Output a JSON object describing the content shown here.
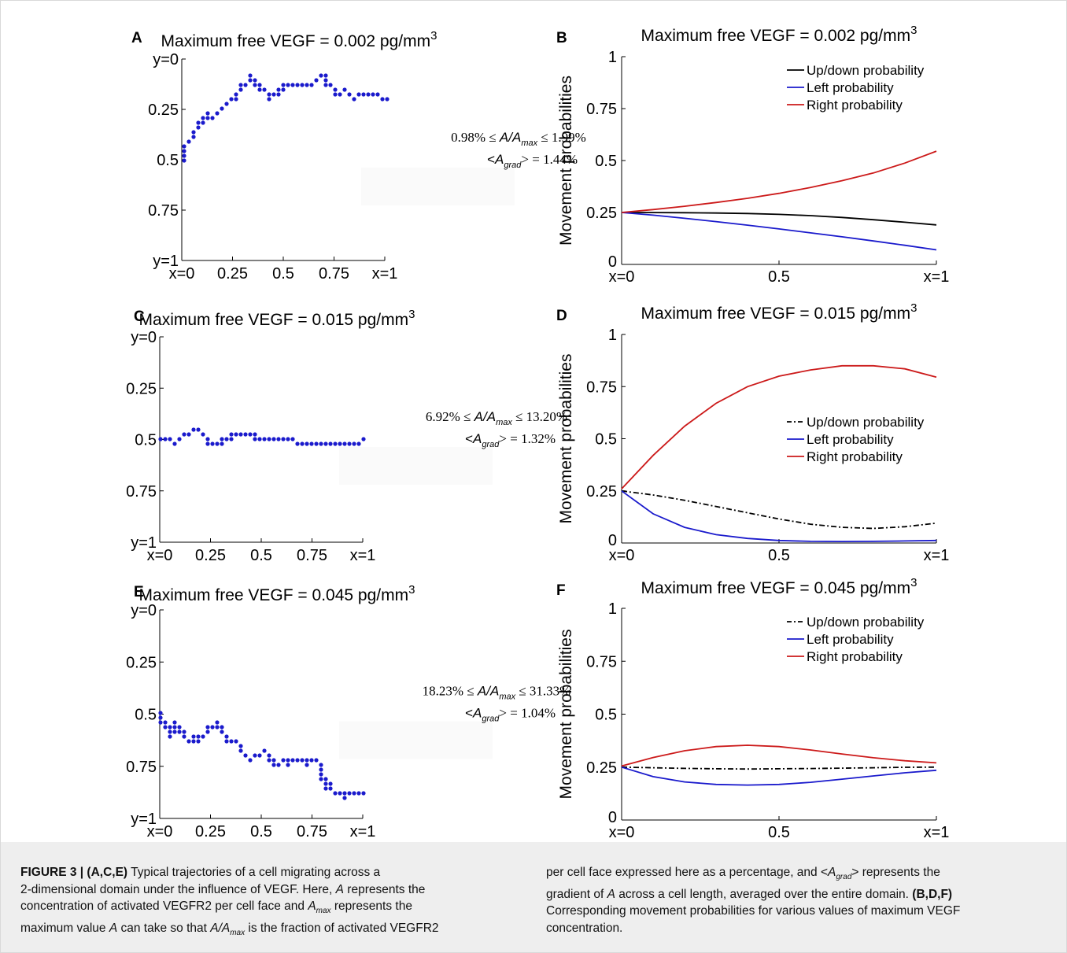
{
  "caption": {
    "label": "FIGURE 3 | (A,C,E)",
    "left": [
      " Typical trajectories of a cell migrating across a",
      "2-dimensional domain under the influence of VEGF. Here, ",
      "A",
      " represents the",
      "concentration of activated VEGFR2 per cell face and ",
      "A",
      "max",
      " represents the",
      "maximum value ",
      "A",
      " can take so that ",
      "A/A",
      "max",
      " is the fraction of activated VEGFR2"
    ],
    "right": [
      "per cell face expressed here as a percentage, and <",
      "A",
      "grad",
      "> represents the",
      "gradient of ",
      "A",
      " across a cell length, averaged over the entire domain. ",
      "(B,D,F)",
      "Corresponding movement probabilities for various values of maximum VEGF",
      "concentration."
    ]
  },
  "chart_data": [
    {
      "panel": "A",
      "type": "scatter",
      "title_prefix": "Maximum free VEGF = 0.002 pg/mm",
      "title_sup": "3",
      "x_ticks": [
        "x=0",
        "0.25",
        "0.5",
        "0.75",
        "x=1"
      ],
      "y_ticks": [
        "y=0",
        "0.25",
        "0.5",
        "0.75",
        "y=1"
      ],
      "xlim": [
        0,
        1
      ],
      "ylim": [
        0,
        1
      ],
      "y_reversed": true,
      "color": "#1a1acc",
      "annotation": {
        "min": "0.98%",
        "max": "1.99%",
        "grad": "1.44%"
      },
      "trajectory": [
        [
          0.0,
          0.5
        ],
        [
          0.02,
          0.44
        ],
        [
          0.04,
          0.4
        ],
        [
          0.06,
          0.36
        ],
        [
          0.08,
          0.34
        ],
        [
          0.1,
          0.31
        ],
        [
          0.12,
          0.28
        ],
        [
          0.14,
          0.3
        ],
        [
          0.16,
          0.29
        ],
        [
          0.18,
          0.27
        ],
        [
          0.2,
          0.24
        ],
        [
          0.22,
          0.23
        ],
        [
          0.24,
          0.2
        ],
        [
          0.26,
          0.19
        ],
        [
          0.28,
          0.16
        ],
        [
          0.3,
          0.14
        ],
        [
          0.32,
          0.12
        ],
        [
          0.34,
          0.09
        ],
        [
          0.36,
          0.11
        ],
        [
          0.38,
          0.13
        ],
        [
          0.4,
          0.16
        ],
        [
          0.42,
          0.17
        ],
        [
          0.44,
          0.19
        ],
        [
          0.46,
          0.18
        ],
        [
          0.48,
          0.16
        ],
        [
          0.5,
          0.15
        ],
        [
          0.52,
          0.13
        ],
        [
          0.54,
          0.13
        ],
        [
          0.56,
          0.13
        ],
        [
          0.58,
          0.13
        ],
        [
          0.6,
          0.13
        ],
        [
          0.62,
          0.13
        ],
        [
          0.64,
          0.12
        ],
        [
          0.66,
          0.11
        ],
        [
          0.68,
          0.09
        ],
        [
          0.7,
          0.08
        ],
        [
          0.72,
          0.12
        ],
        [
          0.74,
          0.14
        ],
        [
          0.76,
          0.17
        ],
        [
          0.78,
          0.17
        ],
        [
          0.8,
          0.16
        ],
        [
          0.82,
          0.17
        ],
        [
          0.84,
          0.19
        ],
        [
          0.86,
          0.19
        ],
        [
          0.88,
          0.18
        ],
        [
          0.9,
          0.18
        ],
        [
          0.92,
          0.18
        ],
        [
          0.94,
          0.18
        ],
        [
          0.96,
          0.18
        ],
        [
          0.98,
          0.19
        ],
        [
          1.0,
          0.19
        ]
      ]
    },
    {
      "panel": "B",
      "type": "line",
      "title_prefix": "Maximum free VEGF = 0.002 pg/mm",
      "title_sup": "3",
      "ylabel": "Movement probabilities",
      "x_ticks": [
        "x=0",
        "0.5",
        "x=1"
      ],
      "y_ticks": [
        "0",
        "0.25",
        "0.5",
        "0.75",
        "1"
      ],
      "xlim": [
        0,
        1
      ],
      "ylim": [
        0,
        1
      ],
      "legend_position": "top-right",
      "x": [
        0,
        0.1,
        0.2,
        0.3,
        0.4,
        0.5,
        0.6,
        0.7,
        0.8,
        0.9,
        1.0
      ],
      "series": [
        {
          "name": "Up/down probability",
          "color": "#000000",
          "dash": "solid",
          "values": [
            0.25,
            0.2497,
            0.249,
            0.2475,
            0.245,
            0.241,
            0.235,
            0.226,
            0.215,
            0.203,
            0.19
          ]
        },
        {
          "name": "Left probability",
          "color": "#1a1acc",
          "dash": "solid",
          "values": [
            0.25,
            0.237,
            0.222,
            0.206,
            0.189,
            0.171,
            0.152,
            0.133,
            0.113,
            0.092,
            0.07
          ]
        },
        {
          "name": "Right probability",
          "color": "#cc1a1a",
          "dash": "solid",
          "values": [
            0.25,
            0.264,
            0.28,
            0.298,
            0.318,
            0.342,
            0.37,
            0.403,
            0.44,
            0.488,
            0.545
          ]
        }
      ]
    },
    {
      "panel": "C",
      "type": "scatter",
      "title_prefix": "Maximum free VEGF = 0.015 pg/mm",
      "title_sup": "3",
      "x_ticks": [
        "x=0",
        "0.25",
        "0.5",
        "0.75",
        "x=1"
      ],
      "y_ticks": [
        "y=0",
        "0.25",
        "0.5",
        "0.75",
        "y=1"
      ],
      "xlim": [
        0,
        1
      ],
      "ylim": [
        0,
        1
      ],
      "y_reversed": true,
      "color": "#1a1acc",
      "annotation": {
        "min": "6.92%",
        "max": "13.20%",
        "grad": "1.32%"
      },
      "trajectory": [
        [
          0.0,
          0.5
        ],
        [
          0.03,
          0.5
        ],
        [
          0.06,
          0.5
        ],
        [
          0.08,
          0.52
        ],
        [
          0.1,
          0.49
        ],
        [
          0.12,
          0.47
        ],
        [
          0.14,
          0.47
        ],
        [
          0.16,
          0.46
        ],
        [
          0.18,
          0.45
        ],
        [
          0.2,
          0.45
        ],
        [
          0.22,
          0.48
        ],
        [
          0.24,
          0.51
        ],
        [
          0.27,
          0.51
        ],
        [
          0.3,
          0.51
        ],
        [
          0.33,
          0.5
        ],
        [
          0.36,
          0.48
        ],
        [
          0.39,
          0.48
        ],
        [
          0.42,
          0.48
        ],
        [
          0.45,
          0.48
        ],
        [
          0.48,
          0.49
        ],
        [
          0.51,
          0.49
        ],
        [
          0.54,
          0.49
        ],
        [
          0.57,
          0.49
        ],
        [
          0.6,
          0.49
        ],
        [
          0.63,
          0.5
        ],
        [
          0.66,
          0.5
        ],
        [
          0.69,
          0.53
        ],
        [
          0.72,
          0.53
        ],
        [
          0.75,
          0.52
        ],
        [
          0.78,
          0.52
        ],
        [
          0.81,
          0.53
        ],
        [
          0.84,
          0.53
        ],
        [
          0.87,
          0.53
        ],
        [
          0.9,
          0.53
        ],
        [
          0.93,
          0.53
        ],
        [
          0.96,
          0.53
        ],
        [
          0.98,
          0.51
        ],
        [
          1.0,
          0.5
        ]
      ]
    },
    {
      "panel": "D",
      "type": "line",
      "title_prefix": "Maximum free VEGF = 0.015 pg/mm",
      "title_sup": "3",
      "ylabel": "Movement probabilities",
      "x_ticks": [
        "x=0",
        "0.5",
        "x=1"
      ],
      "y_ticks": [
        "0",
        "0.25",
        "0.5",
        "0.75",
        "1"
      ],
      "xlim": [
        0,
        1
      ],
      "ylim": [
        0,
        1
      ],
      "legend_position": "right",
      "x": [
        0,
        0.1,
        0.2,
        0.3,
        0.4,
        0.5,
        0.6,
        0.7,
        0.8,
        0.9,
        1.0
      ],
      "series": [
        {
          "name": "Up/down probability",
          "color": "#000000",
          "dash": "dashdot",
          "values": [
            0.25,
            0.23,
            0.205,
            0.175,
            0.145,
            0.115,
            0.09,
            0.075,
            0.07,
            0.078,
            0.095
          ]
        },
        {
          "name": "Left probability",
          "color": "#1a1acc",
          "dash": "solid",
          "values": [
            0.25,
            0.14,
            0.075,
            0.04,
            0.022,
            0.012,
            0.008,
            0.007,
            0.008,
            0.01,
            0.012
          ]
        },
        {
          "name": "Right probability",
          "color": "#cc1a1a",
          "dash": "solid",
          "values": [
            0.26,
            0.42,
            0.56,
            0.67,
            0.75,
            0.8,
            0.83,
            0.85,
            0.85,
            0.835,
            0.795
          ]
        }
      ]
    },
    {
      "panel": "E",
      "type": "scatter",
      "title_prefix": "Maximum free VEGF = 0.045 pg/mm",
      "title_sup": "3",
      "x_ticks": [
        "x=0",
        "0.25",
        "0.5",
        "0.75",
        "x=1"
      ],
      "y_ticks": [
        "y=0",
        "0.25",
        "0.5",
        "0.75",
        "y=1"
      ],
      "xlim": [
        0,
        1
      ],
      "ylim": [
        0,
        1
      ],
      "y_reversed": true,
      "color": "#1a1acc",
      "annotation": {
        "min": "18.23%",
        "max": "31.33%",
        "grad": "1.04%"
      },
      "trajectory": [
        [
          0.0,
          0.5
        ],
        [
          0.02,
          0.55
        ],
        [
          0.04,
          0.57
        ],
        [
          0.06,
          0.6
        ],
        [
          0.08,
          0.55
        ],
        [
          0.1,
          0.58
        ],
        [
          0.12,
          0.6
        ],
        [
          0.14,
          0.63
        ],
        [
          0.16,
          0.62
        ],
        [
          0.18,
          0.6
        ],
        [
          0.2,
          0.62
        ],
        [
          0.22,
          0.6
        ],
        [
          0.24,
          0.57
        ],
        [
          0.26,
          0.56
        ],
        [
          0.28,
          0.55
        ],
        [
          0.3,
          0.57
        ],
        [
          0.32,
          0.6
        ],
        [
          0.34,
          0.63
        ],
        [
          0.36,
          0.62
        ],
        [
          0.38,
          0.63
        ],
        [
          0.4,
          0.66
        ],
        [
          0.42,
          0.69
        ],
        [
          0.44,
          0.71
        ],
        [
          0.46,
          0.7
        ],
        [
          0.48,
          0.69
        ],
        [
          0.5,
          0.69
        ],
        [
          0.52,
          0.68
        ],
        [
          0.54,
          0.7
        ],
        [
          0.56,
          0.72
        ],
        [
          0.58,
          0.75
        ],
        [
          0.6,
          0.73
        ],
        [
          0.62,
          0.72
        ],
        [
          0.64,
          0.74
        ],
        [
          0.66,
          0.72
        ],
        [
          0.68,
          0.72
        ],
        [
          0.7,
          0.72
        ],
        [
          0.72,
          0.74
        ],
        [
          0.74,
          0.72
        ],
        [
          0.76,
          0.72
        ],
        [
          0.78,
          0.73
        ],
        [
          0.8,
          0.8
        ],
        [
          0.82,
          0.85
        ],
        [
          0.84,
          0.83
        ],
        [
          0.86,
          0.87
        ],
        [
          0.88,
          0.88
        ],
        [
          0.9,
          0.9
        ],
        [
          0.92,
          0.88
        ],
        [
          0.94,
          0.87
        ],
        [
          0.96,
          0.88
        ],
        [
          0.98,
          0.88
        ],
        [
          1.0,
          0.88
        ]
      ]
    },
    {
      "panel": "F",
      "type": "line",
      "title_prefix": "Maximum free VEGF = 0.045 pg/mm",
      "title_sup": "3",
      "ylabel": "Movement probabilities",
      "x_ticks": [
        "x=0",
        "0.5",
        "x=1"
      ],
      "y_ticks": [
        "0",
        "0.25",
        "0.5",
        "0.75",
        "1"
      ],
      "xlim": [
        0,
        1
      ],
      "ylim": [
        0,
        1
      ],
      "legend_position": "top-right",
      "x": [
        0,
        0.1,
        0.2,
        0.3,
        0.4,
        0.5,
        0.6,
        0.7,
        0.8,
        0.9,
        1.0
      ],
      "series": [
        {
          "name": "Up/down probability",
          "color": "#000000",
          "dash": "dashdot",
          "values": [
            0.25,
            0.247,
            0.244,
            0.242,
            0.241,
            0.242,
            0.243,
            0.245,
            0.247,
            0.249,
            0.25
          ]
        },
        {
          "name": "Left probability",
          "color": "#1a1acc",
          "dash": "solid",
          "values": [
            0.25,
            0.205,
            0.18,
            0.168,
            0.165,
            0.168,
            0.178,
            0.193,
            0.208,
            0.223,
            0.235
          ]
        },
        {
          "name": "Right probability",
          "color": "#cc1a1a",
          "dash": "solid",
          "values": [
            0.255,
            0.295,
            0.327,
            0.347,
            0.353,
            0.347,
            0.331,
            0.312,
            0.294,
            0.28,
            0.27
          ]
        }
      ]
    }
  ]
}
